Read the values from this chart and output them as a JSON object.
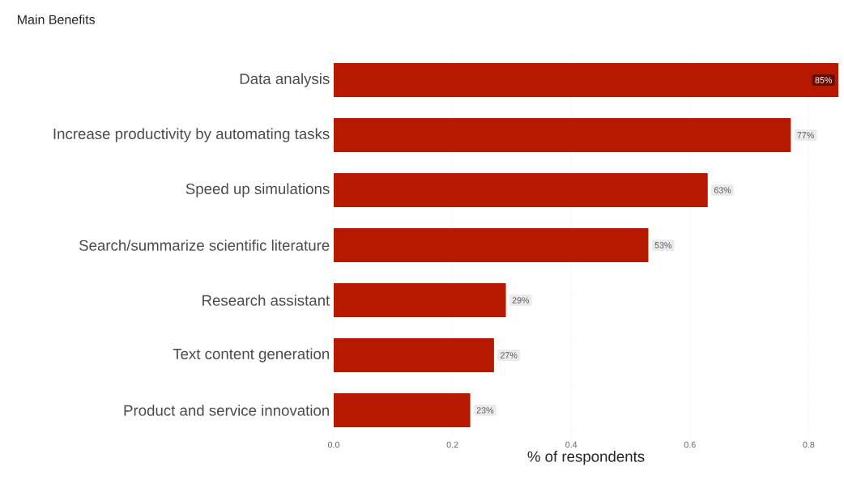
{
  "chart_data": {
    "type": "bar",
    "orientation": "horizontal",
    "title": "Main Benefits",
    "xlabel": "% of respondents",
    "categories": [
      "Data analysis",
      "Increase productivity by automating tasks",
      "Speed up simulations",
      "Search/summarize scientific literature",
      "Research assistant",
      "Text content generation",
      "Product and service innovation"
    ],
    "values": [
      0.85,
      0.77,
      0.63,
      0.53,
      0.29,
      0.27,
      0.23
    ],
    "value_labels": [
      "85%",
      "77%",
      "63%",
      "53%",
      "29%",
      "27%",
      "23%"
    ],
    "color": "#b61800",
    "xlim": [
      0,
      0.85
    ],
    "xticks": [
      {
        "value": 0,
        "label": "0.0"
      },
      {
        "value": 0.2,
        "label": "0.2"
      },
      {
        "value": 0.4,
        "label": "0.4"
      },
      {
        "value": 0.6,
        "label": "0.6"
      },
      {
        "value": 0.8,
        "label": "0.8"
      }
    ],
    "grid": "x"
  }
}
